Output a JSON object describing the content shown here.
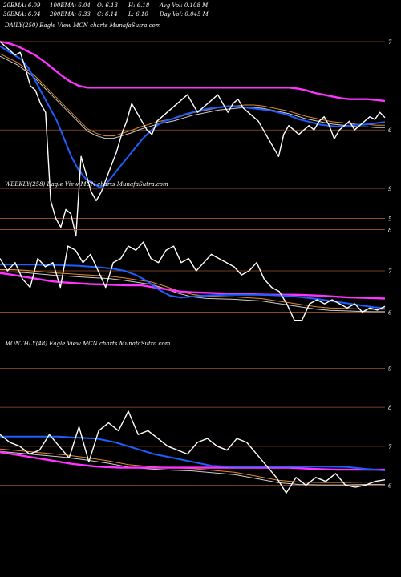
{
  "header": {
    "row1": [
      {
        "label": "20EMA: 6.09"
      },
      {
        "label": "100EMA: 6.04"
      },
      {
        "label": "O: 6.13"
      },
      {
        "label": "H: 6.18"
      },
      {
        "label": "Avg Vol: 0.108  M"
      }
    ],
    "row2": [
      {
        "label": "30EMA: 6.04"
      },
      {
        "label": "200EMA: 6.33"
      },
      {
        "label": "C: 6.14"
      },
      {
        "label": "L: 6.10"
      },
      {
        "label": "Day Vol: 0.045 M"
      }
    ]
  },
  "colors": {
    "background": "#000000",
    "price": "#ffffff",
    "ema_fast": "#1f5fff",
    "ema_slow": "#ff33ff",
    "ema_mid": "#e08a2e",
    "grid": "#a0522d"
  },
  "chart_data": [
    {
      "type": "line",
      "title": "DAILY(250) Eagle   View  MCN  charts MunafaSutra.com",
      "y_ticks": [
        {
          "value": 7,
          "label": "7"
        },
        {
          "value": 6,
          "label": "6"
        },
        {
          "value": 5,
          "label": "5"
        }
      ],
      "ylim": [
        4.75,
        7.2
      ],
      "series": [
        {
          "role": "price",
          "values": [
            7.0,
            6.95,
            6.9,
            6.85,
            6.88,
            6.7,
            6.5,
            6.45,
            6.3,
            6.2,
            5.2,
            5.0,
            4.9,
            5.1,
            5.05,
            4.8,
            5.7,
            5.5,
            5.3,
            5.2,
            5.3,
            5.45,
            5.6,
            5.75,
            5.95,
            6.1,
            6.3,
            6.2,
            6.1,
            6.0,
            5.95,
            6.1,
            6.15,
            6.2,
            6.25,
            6.3,
            6.35,
            6.4,
            6.3,
            6.2,
            6.25,
            6.3,
            6.35,
            6.4,
            6.3,
            6.2,
            6.3,
            6.35,
            6.25,
            6.2,
            6.15,
            6.1,
            6.0,
            5.9,
            5.8,
            5.7,
            5.95,
            6.05,
            6.0,
            5.95,
            6.0,
            6.05,
            6.0,
            6.1,
            6.15,
            6.05,
            5.9,
            6.0,
            6.05,
            6.1,
            6.0,
            6.05,
            6.1,
            6.15,
            6.12,
            6.2,
            6.14
          ]
        },
        {
          "role": "ema_fast",
          "values": [
            6.95,
            6.9,
            6.85,
            6.8,
            6.7,
            6.55,
            6.4,
            6.25,
            6.1,
            5.9,
            5.7,
            5.55,
            5.45,
            5.4,
            5.35,
            5.4,
            5.5,
            5.6,
            5.7,
            5.8,
            5.9,
            5.98,
            6.05,
            6.1,
            6.12,
            6.15,
            6.18,
            6.2,
            6.22,
            6.24,
            6.25,
            6.26,
            6.27,
            6.27,
            6.26,
            6.25,
            6.24,
            6.23,
            6.22,
            6.2,
            6.18,
            6.15,
            6.12,
            6.1,
            6.08,
            6.06,
            6.05,
            6.04,
            6.04,
            6.05,
            6.06,
            6.06,
            6.07,
            6.08,
            6.09
          ]
        },
        {
          "role": "ema_slow",
          "values": [
            7.0,
            6.98,
            6.95,
            6.9,
            6.85,
            6.78,
            6.7,
            6.62,
            6.55,
            6.5,
            6.48,
            6.48,
            6.48,
            6.48,
            6.48,
            6.48,
            6.48,
            6.48,
            6.48,
            6.48,
            6.48,
            6.48,
            6.48,
            6.48,
            6.48,
            6.48,
            6.48,
            6.48,
            6.48,
            6.48,
            6.48,
            6.48,
            6.48,
            6.48,
            6.47,
            6.45,
            6.42,
            6.4,
            6.38,
            6.36,
            6.35,
            6.35,
            6.35,
            6.34,
            6.33
          ]
        },
        {
          "role": "ema_mid",
          "values": [
            6.85,
            6.8,
            6.75,
            6.68,
            6.6,
            6.5,
            6.4,
            6.3,
            6.2,
            6.1,
            6.0,
            5.95,
            5.92,
            5.92,
            5.95,
            5.98,
            6.02,
            6.05,
            6.08,
            6.1,
            6.12,
            6.15,
            6.18,
            6.2,
            6.22,
            6.24,
            6.25,
            6.26,
            6.27,
            6.27,
            6.26,
            6.24,
            6.22,
            6.2,
            6.17,
            6.14,
            6.12,
            6.1,
            6.08,
            6.07,
            6.06,
            6.05,
            6.05,
            6.04,
            6.04
          ]
        }
      ]
    },
    {
      "type": "line",
      "title": "WEEKLY(258) Eagle   View  MCN  charts MunafaSutra.com",
      "y_ticks": [
        {
          "value": 9,
          "label": "9"
        },
        {
          "value": 8,
          "label": "8"
        },
        {
          "value": 7,
          "label": "7"
        },
        {
          "value": 6,
          "label": "6"
        }
      ],
      "ylim": [
        5.6,
        9.1
      ],
      "series": [
        {
          "role": "price",
          "values": [
            7.3,
            7.0,
            7.2,
            6.8,
            6.6,
            7.3,
            7.1,
            7.2,
            6.6,
            7.6,
            7.5,
            7.2,
            7.4,
            7.0,
            6.6,
            7.2,
            7.3,
            7.6,
            7.5,
            7.7,
            7.3,
            7.2,
            7.5,
            7.6,
            7.2,
            7.3,
            7.0,
            7.2,
            7.4,
            7.3,
            7.2,
            7.1,
            6.9,
            7.0,
            7.2,
            6.8,
            6.6,
            6.5,
            6.2,
            5.8,
            5.8,
            6.2,
            6.3,
            6.2,
            6.3,
            6.2,
            6.1,
            6.2,
            6.0,
            6.1,
            6.05,
            6.14
          ]
        },
        {
          "role": "ema_fast",
          "values": [
            7.15,
            7.15,
            7.15,
            7.15,
            7.14,
            7.14,
            7.13,
            7.12,
            7.1,
            7.08,
            7.05,
            7.0,
            6.9,
            6.75,
            6.55,
            6.4,
            6.35,
            6.38,
            6.4,
            6.41,
            6.42,
            6.42,
            6.42,
            6.42,
            6.41,
            6.4,
            6.38,
            6.35,
            6.32,
            6.28,
            6.24,
            6.2,
            6.16,
            6.12,
            6.09
          ]
        },
        {
          "role": "ema_slow",
          "values": [
            6.95,
            6.9,
            6.85,
            6.8,
            6.75,
            6.72,
            6.7,
            6.68,
            6.67,
            6.66,
            6.65,
            6.65,
            6.6,
            6.55,
            6.5,
            6.48,
            6.47,
            6.46,
            6.45,
            6.44,
            6.43,
            6.42,
            6.42,
            6.42,
            6.41,
            6.4,
            6.38,
            6.36,
            6.35,
            6.34,
            6.33
          ]
        },
        {
          "role": "ema_mid",
          "values": [
            7.0,
            7.0,
            6.98,
            6.95,
            6.92,
            6.9,
            6.88,
            6.86,
            6.84,
            6.8,
            6.75,
            6.7,
            6.6,
            6.48,
            6.4,
            6.36,
            6.35,
            6.34,
            6.32,
            6.3,
            6.25,
            6.2,
            6.15,
            6.1,
            6.07,
            6.06,
            6.05,
            6.04,
            6.04
          ]
        }
      ]
    },
    {
      "type": "line",
      "title": "MONTHLY(48) Eagle   View  MCN  charts MunafaSutra.com",
      "y_ticks": [
        {
          "value": 9,
          "label": "9"
        },
        {
          "value": 8,
          "label": "8"
        },
        {
          "value": 7,
          "label": "7"
        },
        {
          "value": 6,
          "label": "6"
        }
      ],
      "ylim": [
        5.6,
        9.4
      ],
      "series": [
        {
          "role": "price",
          "values": [
            7.3,
            7.1,
            7.0,
            6.8,
            6.9,
            7.3,
            7.0,
            6.7,
            7.5,
            6.6,
            7.4,
            7.6,
            7.4,
            7.9,
            7.3,
            7.4,
            7.2,
            7.0,
            6.9,
            6.8,
            7.1,
            7.2,
            7.0,
            6.9,
            7.2,
            7.1,
            6.8,
            6.5,
            6.2,
            5.8,
            6.2,
            6.0,
            6.2,
            6.1,
            6.3,
            6.0,
            5.95,
            6.0,
            6.1,
            6.14
          ]
        },
        {
          "role": "ema_fast",
          "values": [
            7.25,
            7.25,
            7.25,
            7.25,
            7.22,
            7.2,
            7.1,
            6.95,
            6.8,
            6.7,
            6.6,
            6.5,
            6.48,
            6.48,
            6.48,
            6.48,
            6.48,
            6.48,
            6.47,
            6.42,
            6.38
          ]
        },
        {
          "role": "ema_slow",
          "values": [
            6.85,
            6.75,
            6.65,
            6.55,
            6.48,
            6.45,
            6.45,
            6.45,
            6.45,
            6.45,
            6.45,
            6.45,
            6.45,
            6.42,
            6.4,
            6.4,
            6.4
          ]
        },
        {
          "role": "ema_mid",
          "values": [
            6.9,
            6.85,
            6.8,
            6.75,
            6.68,
            6.6,
            6.5,
            6.45,
            6.42,
            6.4,
            6.35,
            6.3,
            6.2,
            6.1,
            6.05,
            6.04,
            6.04,
            6.05,
            6.05
          ]
        }
      ]
    }
  ]
}
